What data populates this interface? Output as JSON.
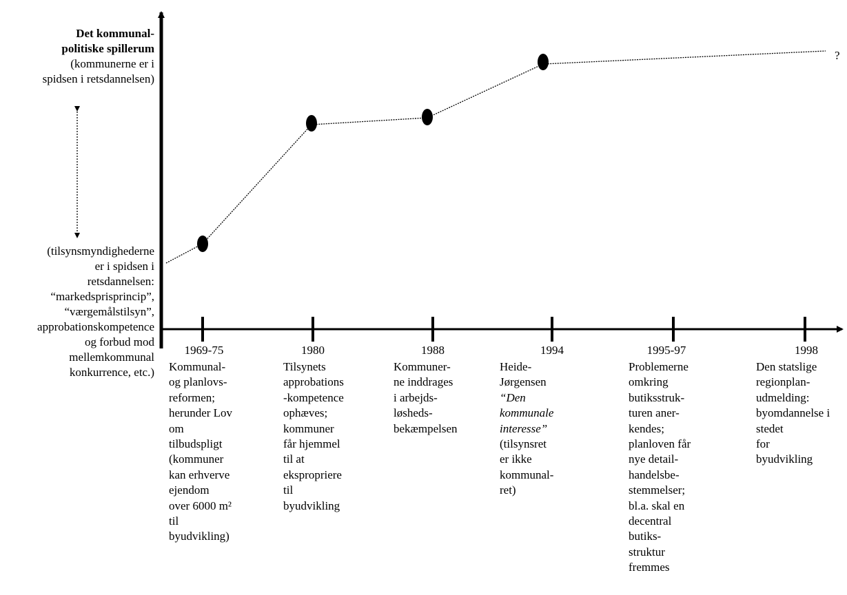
{
  "y_axis": {
    "top_label_bold_1": "Det kommunal-",
    "top_label_bold_2": "politiske spillerum",
    "top_label_3": "(kommunerne er i",
    "top_label_4": "spidsen i retsdannelsen)",
    "bottom_label": [
      "(tilsynsmyndighederne",
      "er i spidsen i",
      "retsdannelsen:",
      "“markedsprisprincip”,",
      "“værgemålstilsyn”,",
      "approbationskompetence",
      "og forbud mod",
      "mellemkommunal",
      "konkurrence, etc.)"
    ]
  },
  "end_marker": "?",
  "timeline": [
    {
      "year": "1969-75",
      "level": 0.25,
      "lines": [
        "Kommunal-",
        "og planlovs-",
        "reformen;",
        "herunder Lov",
        "om",
        "tilbudspligt",
        "(kommuner",
        "kan erhverve",
        "ejendom",
        "over 6000 m²",
        "til",
        "byudvikling)"
      ]
    },
    {
      "year": "1980",
      "level": 0.8,
      "lines": [
        "Tilsynets",
        "approbations",
        "-kompetence",
        "ophæves;",
        "kommuner",
        "får hjemmel",
        "til at",
        "ekspropriere",
        "til",
        "byudvikling"
      ]
    },
    {
      "year": "1988",
      "level": 0.81,
      "lines": [
        "Kommuner-",
        "ne inddrages",
        "i arbejds-",
        "løsheds-",
        "bekæmpelsen"
      ]
    },
    {
      "year": "1994",
      "level": 0.92,
      "lines": [
        "Heide-",
        "Jørgensen",
        "“Den",
        "kommunale",
        "interesse”",
        "(tilsynsret",
        "er ikke",
        "kommunal-",
        "ret)"
      ]
    },
    {
      "year": "1995-97",
      "lines": [
        "Problemerne",
        "omkring",
        "butiksstruk-",
        "turen aner-",
        "kendes;",
        "planloven får",
        "nye detail-",
        "handelsbe-",
        "stemmelser;",
        "bl.a. skal en",
        "decentral",
        "butiks-",
        "struktur",
        "fremmes"
      ]
    },
    {
      "year": "1998",
      "lines": [
        "Den statslige",
        "regionplan-",
        "udmelding:",
        "byomdannelse i stedet",
        "for",
        "byudvikling"
      ]
    }
  ]
}
